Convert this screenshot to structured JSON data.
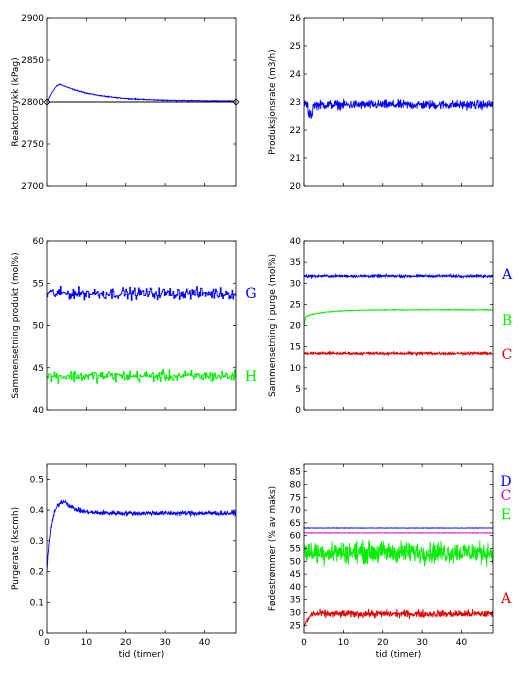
{
  "chart_data": [
    {
      "type": "line",
      "ylabel": "Reaktortrykk (kPag)",
      "xlabel": "",
      "xlim": [
        0,
        48
      ],
      "ylim": [
        2700,
        2900
      ],
      "xticks": [
        0,
        10,
        20,
        30,
        40
      ],
      "xtick_labels_shown": false,
      "yticks": [
        2700,
        2750,
        2800,
        2850,
        2900
      ],
      "series": [
        {
          "color": "#0000ff",
          "trend": "rise from 2800 to peak ~2821 at t=3.5 h, then slow decay to ~2801 by t=48 h",
          "start": 2800,
          "peak": 2821,
          "peak_t": 3.5,
          "end": 2801
        },
        {
          "color": "#000000",
          "setpoint": 2800,
          "markers": "diamond at both ends"
        }
      ]
    },
    {
      "type": "line",
      "ylabel": "Produksjonsrate (m3/h)",
      "xlabel": "",
      "xlim": [
        0,
        48
      ],
      "ylim": [
        20,
        26
      ],
      "xticks": [
        0,
        10,
        20,
        30,
        40
      ],
      "xtick_labels_shown": false,
      "yticks": [
        20,
        21,
        22,
        23,
        24,
        25,
        26
      ],
      "series": [
        {
          "color": "#0000ff",
          "mean": 22.9,
          "noise_amplitude": 0.25,
          "dip_t": 1.5,
          "dip_value": 22.5
        }
      ]
    },
    {
      "type": "line",
      "ylabel": "Sammensetning produkt (mol%)",
      "xlabel": "",
      "xlim": [
        0,
        48
      ],
      "ylim": [
        40,
        60
      ],
      "xticks": [
        0,
        10,
        20,
        30,
        40
      ],
      "xtick_labels_shown": false,
      "yticks": [
        40,
        45,
        50,
        55,
        60
      ],
      "series": [
        {
          "name": "G",
          "color": "#0000ff",
          "mean": 53.8,
          "noise_amplitude": 0.7,
          "style": "step"
        },
        {
          "name": "H",
          "color": "#00ee00",
          "mean": 44.0,
          "noise_amplitude": 0.7,
          "style": "step"
        }
      ]
    },
    {
      "type": "line",
      "ylabel": "Sammensetning i purge (mol%)",
      "xlabel": "",
      "xlim": [
        0,
        48
      ],
      "ylim": [
        0,
        40
      ],
      "xticks": [
        0,
        10,
        20,
        30,
        40
      ],
      "xtick_labels_shown": false,
      "yticks": [
        0,
        5,
        10,
        15,
        20,
        25,
        30,
        35,
        40
      ],
      "series": [
        {
          "name": "A",
          "color": "#0000ff",
          "mean": 31.7,
          "noise_amplitude": 0.35
        },
        {
          "name": "B",
          "color": "#00ee00",
          "start": 22.0,
          "end": 23.7,
          "noise_amplitude": 0.15
        },
        {
          "name": "C",
          "color": "#dd0000",
          "mean": 13.4,
          "noise_amplitude": 0.35
        }
      ]
    },
    {
      "type": "line",
      "ylabel": "Purgerate (kscmh)",
      "xlabel": "tid (timer)",
      "xlim": [
        0,
        48
      ],
      "ylim": [
        0,
        0.55
      ],
      "xticks": [
        0,
        10,
        20,
        30,
        40
      ],
      "yticks": [
        0,
        0.1,
        0.2,
        0.3,
        0.4,
        0.5
      ],
      "series": [
        {
          "color": "#0000ff",
          "start": 0.2,
          "peak": 0.43,
          "peak_t": 4.5,
          "settle": 0.39,
          "noise_amplitude": 0.012
        }
      ]
    },
    {
      "type": "line",
      "ylabel": "Fødestrømmer (% av maks)",
      "xlabel": "tid (timer)",
      "xlim": [
        0,
        48
      ],
      "ylim": [
        22,
        88
      ],
      "xticks": [
        0,
        10,
        20,
        30,
        40
      ],
      "yticks": [
        25,
        30,
        35,
        40,
        45,
        50,
        55,
        60,
        65,
        70,
        75,
        80,
        85
      ],
      "series": [
        {
          "name": "D",
          "color": "#0000ff",
          "mean": 63.0,
          "noise_amplitude": 0.1
        },
        {
          "name": "C",
          "color": "#cc00cc",
          "mean": 61.1,
          "noise_amplitude": 0.1
        },
        {
          "name": "E",
          "color": "#00ee00",
          "mean": 53.5,
          "noise_amplitude": 3.5
        },
        {
          "name": "A",
          "color": "#dd0000",
          "mean": 29.5,
          "noise_amplitude": 1.4,
          "start": 25.0
        }
      ]
    }
  ]
}
